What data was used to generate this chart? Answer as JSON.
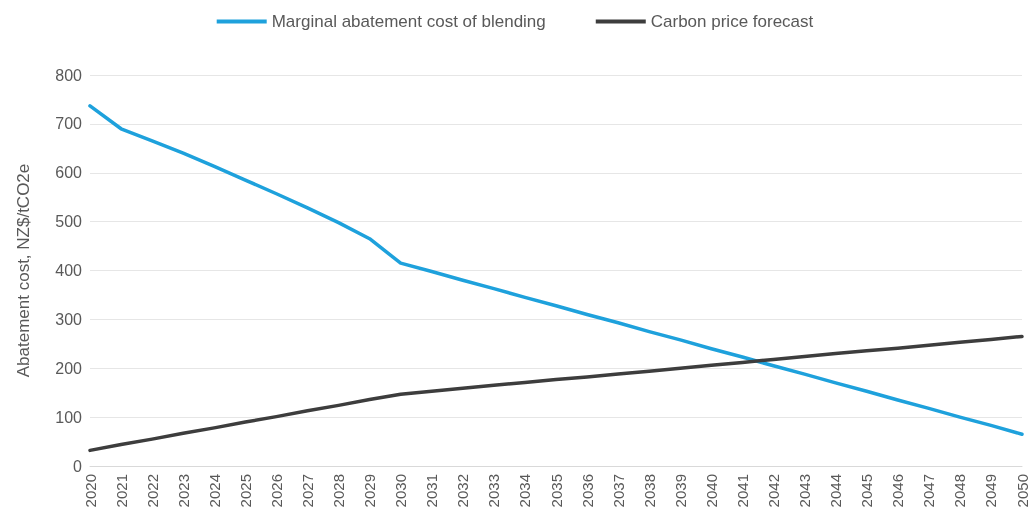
{
  "chart_data": {
    "type": "line",
    "ylabel": "Abatement cost, NZ$/tCO2e",
    "categories": [
      "2020",
      "2021",
      "2022",
      "2023",
      "2024",
      "2025",
      "2026",
      "2027",
      "2028",
      "2029",
      "2030",
      "2031",
      "2032",
      "2033",
      "2034",
      "2035",
      "2036",
      "2037",
      "2038",
      "2039",
      "2040",
      "2041",
      "2042",
      "2043",
      "2044",
      "2045",
      "2046",
      "2047",
      "2048",
      "2049",
      "2050"
    ],
    "series": [
      {
        "name": "Marginal abatement cost of blending",
        "color": "#1ea1dc",
        "values": [
          737,
          690,
          665,
          640,
          613,
          585,
          557,
          528,
          498,
          465,
          415,
          398,
          380,
          363,
          345,
          328,
          310,
          293,
          275,
          258,
          240,
          223,
          205,
          188,
          170,
          153,
          135,
          118,
          100,
          83,
          65
        ]
      },
      {
        "name": "Carbon price forecast",
        "color": "#3d3d3d",
        "values": [
          32,
          44,
          55,
          67,
          78,
          90,
          101,
          113,
          124,
          136,
          147,
          153,
          159,
          165,
          171,
          177,
          182,
          188,
          194,
          200,
          206,
          212,
          218,
          224,
          230,
          236,
          241,
          247,
          253,
          259,
          265
        ]
      }
    ],
    "ylim": [
      0,
      800
    ],
    "yticks": [
      0,
      100,
      200,
      300,
      400,
      500,
      600,
      700,
      800
    ],
    "grid": "y",
    "legend": "top",
    "marker": "none",
    "line_style": "solid"
  }
}
